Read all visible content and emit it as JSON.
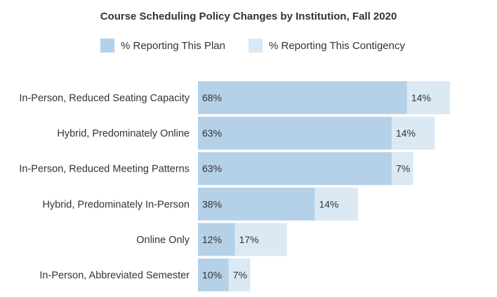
{
  "chart_data": {
    "type": "bar",
    "orientation": "horizontal",
    "stacked": true,
    "title": "Course Scheduling Policy Changes by Institution, Fall 2020",
    "legend_position": "top",
    "grid": false,
    "categories": [
      "In-Person, Reduced Seating Capacity",
      "Hybrid, Predominately Online",
      "In-Person, Reduced Meeting Patterns",
      "Hybrid, Predominately In-Person",
      "Online Only",
      "In-Person, Abbreviated Semester"
    ],
    "series": [
      {
        "name": "% Reporting This Plan",
        "color": "#b5d1e8",
        "values": [
          68,
          63,
          63,
          38,
          12,
          10
        ],
        "labels": [
          "68%",
          "63%",
          "63%",
          "38%",
          "12%",
          "10%"
        ]
      },
      {
        "name": "% Reporting This Contigency",
        "color": "#dae9f4",
        "values": [
          14,
          14,
          7,
          14,
          17,
          7
        ],
        "labels": [
          "14%",
          "14%",
          "7%",
          "14%",
          "17%",
          "7%"
        ]
      }
    ],
    "xlim": [
      0,
      100
    ]
  }
}
